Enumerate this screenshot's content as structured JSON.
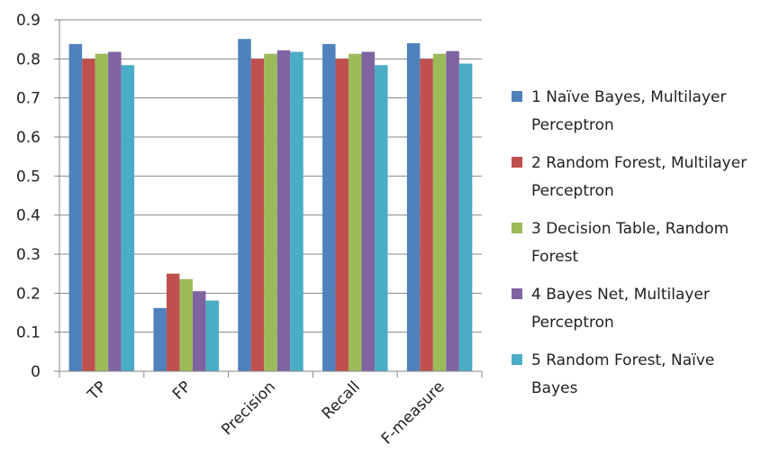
{
  "chart_data": {
    "type": "bar",
    "categories": [
      "TP",
      "FP",
      "Precision",
      "Recall",
      "F-measure"
    ],
    "series": [
      {
        "name": "1 Naïve Bayes, Multilayer Perceptron",
        "color": "#4f81bd",
        "values": [
          0.838,
          0.162,
          0.851,
          0.838,
          0.84
        ]
      },
      {
        "name": "2 Random Forest, Multilayer Perceptron",
        "color": "#c0504d",
        "values": [
          0.8,
          0.25,
          0.8,
          0.8,
          0.8
        ]
      },
      {
        "name": "3 Decision Table, Random Forest",
        "color": "#9bbb59",
        "values": [
          0.813,
          0.236,
          0.813,
          0.813,
          0.813
        ]
      },
      {
        "name": "4 Bayes Net, Multilayer Perceptron",
        "color": "#8064a2",
        "values": [
          0.818,
          0.205,
          0.822,
          0.818,
          0.82
        ]
      },
      {
        "name": "5 Random Forest, Naïve Bayes",
        "color": "#4bacc6",
        "values": [
          0.784,
          0.181,
          0.818,
          0.784,
          0.788
        ]
      }
    ],
    "yticks": [
      "0",
      "0.1",
      "0.2",
      "0.3",
      "0.4",
      "0.5",
      "0.6",
      "0.7",
      "0.8",
      "0.9"
    ],
    "ylim": [
      0,
      0.9
    ],
    "grid": "horizontal",
    "legend": "right"
  }
}
